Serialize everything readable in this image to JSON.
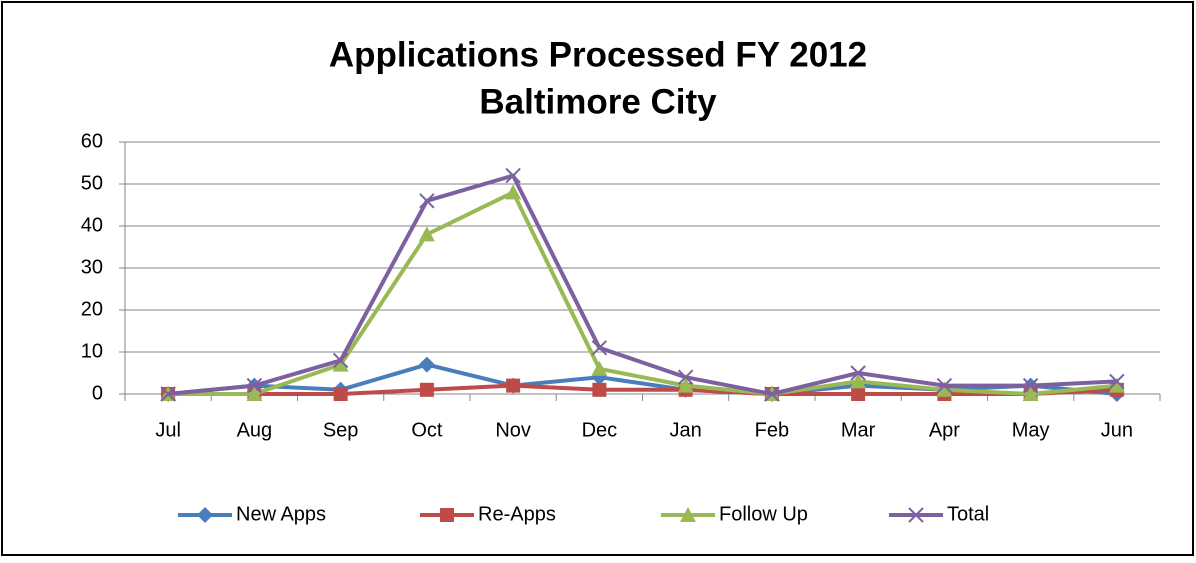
{
  "chart_data": {
    "type": "line",
    "title": "Applications Processed FY 2012",
    "subtitle": "Baltimore City",
    "categories": [
      "Jul",
      "Aug",
      "Sep",
      "Oct",
      "Nov",
      "Dec",
      "Jan",
      "Feb",
      "Mar",
      "Apr",
      "May",
      "Jun"
    ],
    "series": [
      {
        "name": "New Apps",
        "color": "#4a7ebb",
        "marker": "diamond",
        "values": [
          0,
          2,
          1,
          7,
          2,
          4,
          1,
          0,
          2,
          1,
          2,
          0
        ]
      },
      {
        "name": "Re-Apps",
        "color": "#be4b48",
        "marker": "square",
        "values": [
          0,
          0,
          0,
          1,
          2,
          1,
          1,
          0,
          0,
          0,
          0,
          1
        ]
      },
      {
        "name": "Follow Up",
        "color": "#98b954",
        "marker": "triangle",
        "values": [
          0,
          0,
          7,
          38,
          48,
          6,
          2,
          0,
          3,
          1,
          0,
          2
        ]
      },
      {
        "name": "Total",
        "color": "#7d60a0",
        "marker": "x",
        "values": [
          0,
          2,
          8,
          46,
          52,
          11,
          4,
          0,
          5,
          2,
          2,
          3
        ]
      }
    ],
    "ylim": [
      0,
      60
    ],
    "yticks": [
      0,
      10,
      20,
      30,
      40,
      50,
      60
    ],
    "grid": true,
    "legend": "bottom"
  }
}
